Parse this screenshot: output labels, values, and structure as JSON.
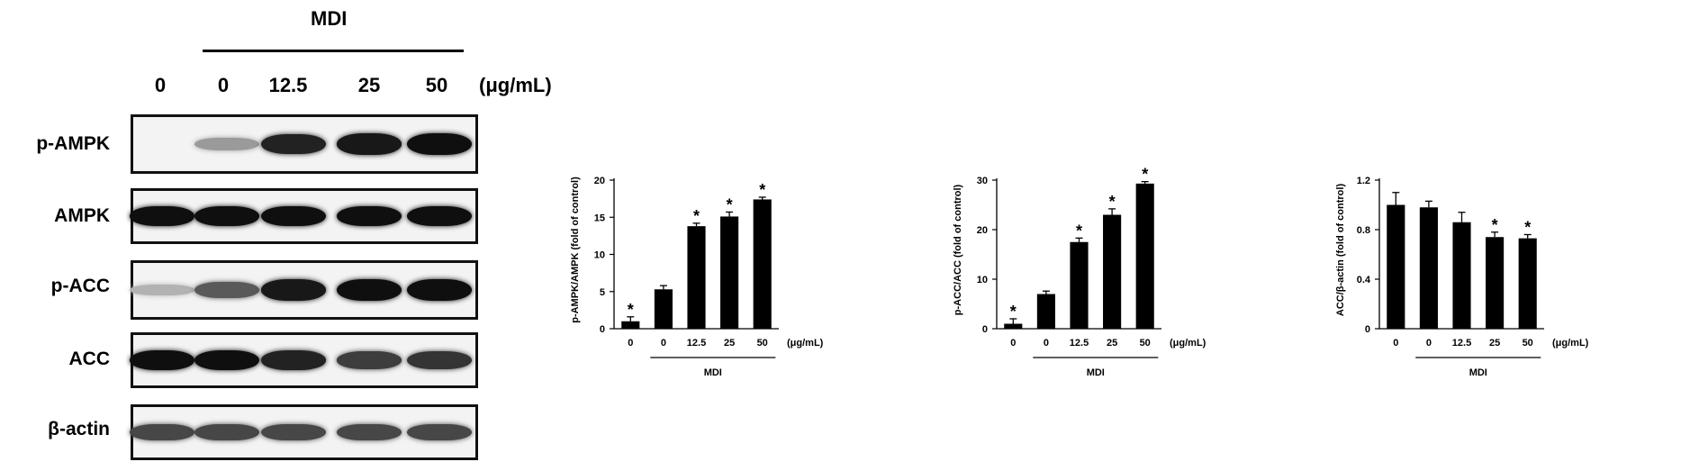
{
  "blot": {
    "group_label": "MDI",
    "unit": "(μg/mL)",
    "lanes": [
      "0",
      "0",
      "12.5",
      "25",
      "50"
    ],
    "rows": [
      {
        "label": "p-AMPK",
        "intensity": [
          0.0,
          0.25,
          0.9,
          0.95,
          1.0
        ]
      },
      {
        "label": "AMPK",
        "intensity": [
          1.0,
          1.0,
          1.0,
          1.0,
          1.0
        ]
      },
      {
        "label": "p-ACC",
        "intensity": [
          0.12,
          0.6,
          0.95,
          1.0,
          1.0
        ]
      },
      {
        "label": "ACC",
        "intensity": [
          1.0,
          1.0,
          0.9,
          0.75,
          0.8
        ]
      },
      {
        "label": "β-actin",
        "intensity": [
          0.7,
          0.7,
          0.7,
          0.7,
          0.7
        ]
      }
    ]
  },
  "chart_data": [
    {
      "type": "bar",
      "ylabel": "p-AMPK/AMPK (fold of control)",
      "categories": [
        "0",
        "0",
        "12.5",
        "25",
        "50"
      ],
      "unit_label": "(μg/mL)",
      "group_label": "MDI",
      "values": [
        1.0,
        5.3,
        13.8,
        15.1,
        17.4
      ],
      "errors": [
        0.6,
        0.5,
        0.4,
        0.6,
        0.3
      ],
      "significant": [
        true,
        false,
        true,
        true,
        true
      ],
      "ylim": [
        0,
        20
      ],
      "yticks": [
        "0",
        "5",
        "10",
        "15",
        "20"
      ]
    },
    {
      "type": "bar",
      "ylabel": "p-ACC/ACC (fold of control)",
      "categories": [
        "0",
        "0",
        "12.5",
        "25",
        "50"
      ],
      "unit_label": "(μg/mL)",
      "group_label": "MDI",
      "values": [
        1.0,
        7.0,
        17.5,
        23.0,
        29.3
      ],
      "errors": [
        1.0,
        0.6,
        0.8,
        1.2,
        0.4
      ],
      "significant": [
        true,
        false,
        true,
        true,
        true
      ],
      "ylim": [
        0,
        30
      ],
      "yticks": [
        "0",
        "10",
        "20",
        "30"
      ]
    },
    {
      "type": "bar",
      "ylabel": "ACC/β-actin (fold of control)",
      "categories": [
        "0",
        "0",
        "12.5",
        "25",
        "50"
      ],
      "unit_label": "(μg/mL)",
      "group_label": "MDI",
      "values": [
        1.0,
        0.98,
        0.86,
        0.74,
        0.73
      ],
      "errors": [
        0.1,
        0.05,
        0.08,
        0.04,
        0.03
      ],
      "significant": [
        false,
        false,
        false,
        true,
        true
      ],
      "ylim": [
        0,
        1.2
      ],
      "yticks": [
        "0",
        "0.4",
        "0.8",
        "1.2"
      ]
    }
  ]
}
